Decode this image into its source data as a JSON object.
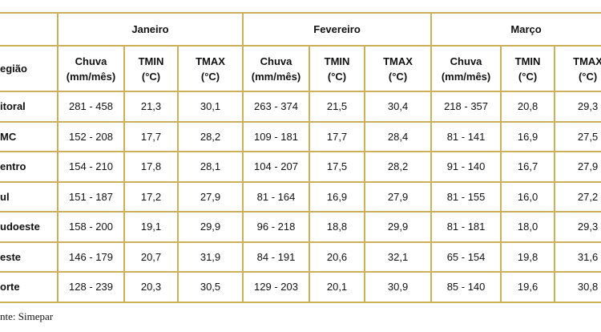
{
  "table": {
    "months": [
      "Janeiro",
      "Fevereiro",
      "Março"
    ],
    "region_header": "egião",
    "subheaders": [
      [
        "Chuva",
        "(mm/mês)"
      ],
      [
        "TMIN",
        "(°C)"
      ],
      [
        "TMAX",
        "(°C)"
      ],
      [
        "Chuva",
        "(mm/mês)"
      ],
      [
        "TMIN",
        "(°C)"
      ],
      [
        "TMAX",
        "(°C)"
      ],
      [
        "Chuva",
        "(mm/mês)"
      ],
      [
        "TMIN",
        "(°C)"
      ],
      [
        "TMAX",
        "(°C)"
      ]
    ],
    "rows": [
      [
        "itoral",
        "281 - 458",
        "21,3",
        "30,1",
        "263 - 374",
        "21,5",
        "30,4",
        "218 - 357",
        "20,8",
        "29,3"
      ],
      [
        "MC",
        "152 - 208",
        "17,7",
        "28,2",
        "109 - 181",
        "17,7",
        "28,4",
        "81 - 141",
        "16,9",
        "27,5"
      ],
      [
        "entro",
        "154 - 210",
        "17,8",
        "28,1",
        "104 - 207",
        "17,5",
        "28,2",
        "91 - 140",
        "16,7",
        "27,9"
      ],
      [
        "ul",
        "151 - 187",
        "17,2",
        "27,9",
        "81 - 164",
        "16,9",
        "27,9",
        "81 - 155",
        "16,0",
        "27,2"
      ],
      [
        "udoeste",
        "158 - 200",
        "19,1",
        "29,9",
        "96 - 218",
        "18,8",
        "29,9",
        "81 - 181",
        "18,0",
        "29,3"
      ],
      [
        "este",
        "146 - 179",
        "20,7",
        "31,9",
        "84 - 191",
        "20,6",
        "32,1",
        "65 - 154",
        "19,8",
        "31,6"
      ],
      [
        "orte",
        "128 - 239",
        "20,3",
        "30,5",
        "129 - 203",
        "20,1",
        "30,9",
        "85 - 140",
        "19,6",
        "30,8"
      ]
    ],
    "source": "nte: Simepar"
  }
}
